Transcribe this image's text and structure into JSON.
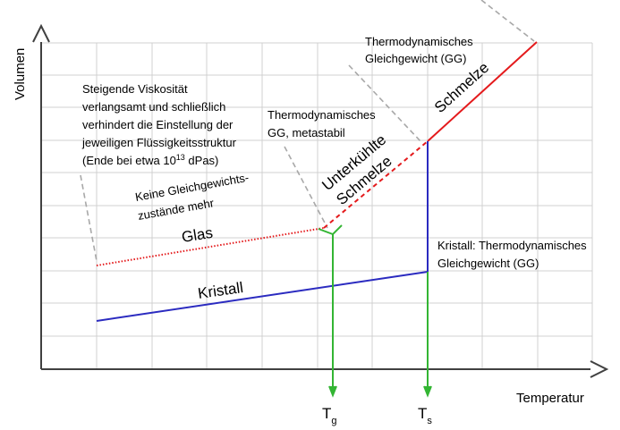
{
  "axes": {
    "y_label": "Volumen",
    "x_label": "Temperatur"
  },
  "curves": {
    "glas": "Glas",
    "kristall": "Kristall",
    "schmelze": "Schmelze",
    "unterkuehlt_line1": "Unterkühlte",
    "unterkuehlt_line2": "Schmelze"
  },
  "annotations": {
    "viskositaet": {
      "line1": "Steigende Viskosität",
      "line2": "verlangsamt und schließlich",
      "line3": "verhindert die Einstellung der",
      "line4": "jeweiligen Flüssigkeitsstruktur",
      "line5_pre": "(Ende bei etwa 10",
      "line5_sup": "13",
      "line5_post": " dPas)"
    },
    "keine_gg": {
      "line1": "Keine Gleichgewichts-",
      "line2": "zustände mehr"
    },
    "metastabil": {
      "line1": "Thermodynamisches",
      "line2": "GG, metastabil"
    },
    "schmelze_gg": {
      "line1": "Thermodynamisches",
      "line2": "Gleichgewicht (GG)"
    },
    "kristall_gg": {
      "line1": "Kristall: Thermodynamisches",
      "line2": "Gleichgewicht (GG)"
    }
  },
  "markers": {
    "tg_main": "T",
    "tg_sub": "g",
    "ts_main": "T",
    "ts_sub": "s"
  },
  "colors": {
    "grid": "#d0d0d0",
    "axis": "#404040",
    "melt": "#e41a1c",
    "crystal": "#2b2bc0",
    "transition": "#33b533",
    "pointer": "#a8a8a8"
  }
}
